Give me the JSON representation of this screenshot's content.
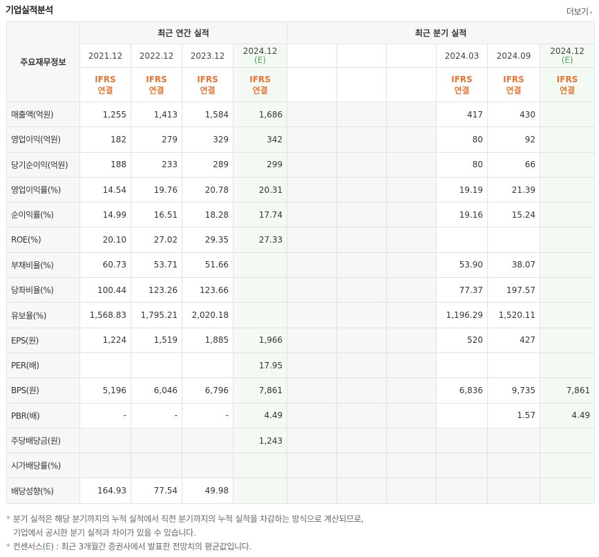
{
  "header": {
    "title": "기업실적분석",
    "more_label": "더보기",
    "more_arrow": "›"
  },
  "table": {
    "corner_label": "주요재무정보",
    "annual_group": "최근 연간 실적",
    "quarter_group": "최근 분기 실적",
    "annual_years": [
      "2021.12",
      "2022.12",
      "2023.12",
      "2024.12"
    ],
    "annual_est": "(E)",
    "quarter_periods": [
      "",
      "",
      "",
      "2024.03",
      "2024.09",
      "2024.12"
    ],
    "quarter_est": "(E)",
    "ifrs_top": "IFRS",
    "ifrs_bottom": "연결",
    "rows": [
      {
        "label": "매출액(억원)",
        "annual": [
          "1,255",
          "1,413",
          "1,584",
          "1,686"
        ],
        "quarter": [
          "",
          "",
          "",
          "417",
          "430",
          ""
        ]
      },
      {
        "label": "영업이익(억원)",
        "annual": [
          "182",
          "279",
          "329",
          "342"
        ],
        "quarter": [
          "",
          "",
          "",
          "80",
          "92",
          ""
        ]
      },
      {
        "label": "당기순이익(억원)",
        "annual": [
          "188",
          "233",
          "289",
          "299"
        ],
        "quarter": [
          "",
          "",
          "",
          "80",
          "66",
          ""
        ]
      },
      {
        "label": "영업이익률(%)",
        "annual": [
          "14.54",
          "19.76",
          "20.78",
          "20.31"
        ],
        "quarter": [
          "",
          "",
          "",
          "19.19",
          "21.39",
          ""
        ]
      },
      {
        "label": "순이익률(%)",
        "annual": [
          "14.99",
          "16.51",
          "18.28",
          "17.74"
        ],
        "quarter": [
          "",
          "",
          "",
          "19.16",
          "15.24",
          ""
        ]
      },
      {
        "label": "ROE(%)",
        "annual": [
          "20.10",
          "27.02",
          "29.35",
          "27.33"
        ],
        "quarter": [
          "",
          "",
          "",
          "",
          "",
          ""
        ]
      },
      {
        "label": "부채비율(%)",
        "annual": [
          "60.73",
          "53.71",
          "51.66",
          ""
        ],
        "quarter": [
          "",
          "",
          "",
          "53.90",
          "38.07",
          ""
        ]
      },
      {
        "label": "당좌비율(%)",
        "annual": [
          "100.44",
          "123.26",
          "123.66",
          ""
        ],
        "quarter": [
          "",
          "",
          "",
          "77.37",
          "197.57",
          ""
        ]
      },
      {
        "label": "유보율(%)",
        "annual": [
          "1,568.83",
          "1,795.21",
          "2,020.18",
          ""
        ],
        "quarter": [
          "",
          "",
          "",
          "1,196.29",
          "1,520.11",
          ""
        ]
      },
      {
        "label": "EPS(원)",
        "annual": [
          "1,224",
          "1,519",
          "1,885",
          "1,966"
        ],
        "quarter": [
          "",
          "",
          "",
          "520",
          "427",
          ""
        ]
      },
      {
        "label": "PER(배)",
        "annual": [
          "",
          "",
          "",
          "17.95"
        ],
        "quarter": [
          "",
          "",
          "",
          "",
          "",
          ""
        ]
      },
      {
        "label": "BPS(원)",
        "annual": [
          "5,196",
          "6,046",
          "6,796",
          "7,861"
        ],
        "quarter": [
          "",
          "",
          "",
          "6,836",
          "9,735",
          "7,861"
        ]
      },
      {
        "label": "PBR(배)",
        "annual": [
          "-",
          "-",
          "-",
          "4.49"
        ],
        "quarter": [
          "",
          "",
          "",
          "",
          "1.57",
          "4.49"
        ]
      },
      {
        "label": "주당배당금(원)",
        "annual": [
          "",
          "",
          "",
          "1,243"
        ],
        "quarter": [
          "",
          "",
          "",
          "",
          "",
          ""
        ]
      },
      {
        "label": "시가배당률(%)",
        "annual": [
          "",
          "",
          "",
          ""
        ],
        "quarter": [
          "",
          "",
          "",
          "",
          "",
          ""
        ]
      },
      {
        "label": "배당성향(%)",
        "annual": [
          "164.93",
          "77.54",
          "49.98",
          ""
        ],
        "quarter": [
          "",
          "",
          "",
          "",
          "",
          ""
        ]
      }
    ]
  },
  "notes": {
    "bullet": "*",
    "line1": "분기 실적은 해당 분기까지의 누적 실적에서 직전 분기까지의 누적 실적을 차감하는 방식으로 계산되므로,",
    "line2": "기업에서 공시한 분기 실적과 차이가 있을 수 있습니다.",
    "line3_prefix": "컨센서스(",
    "line3_e": "E",
    "line3_suffix": ") : 최근 3개월간 증권사에서 발표한 전망치의 평균값입니다."
  }
}
